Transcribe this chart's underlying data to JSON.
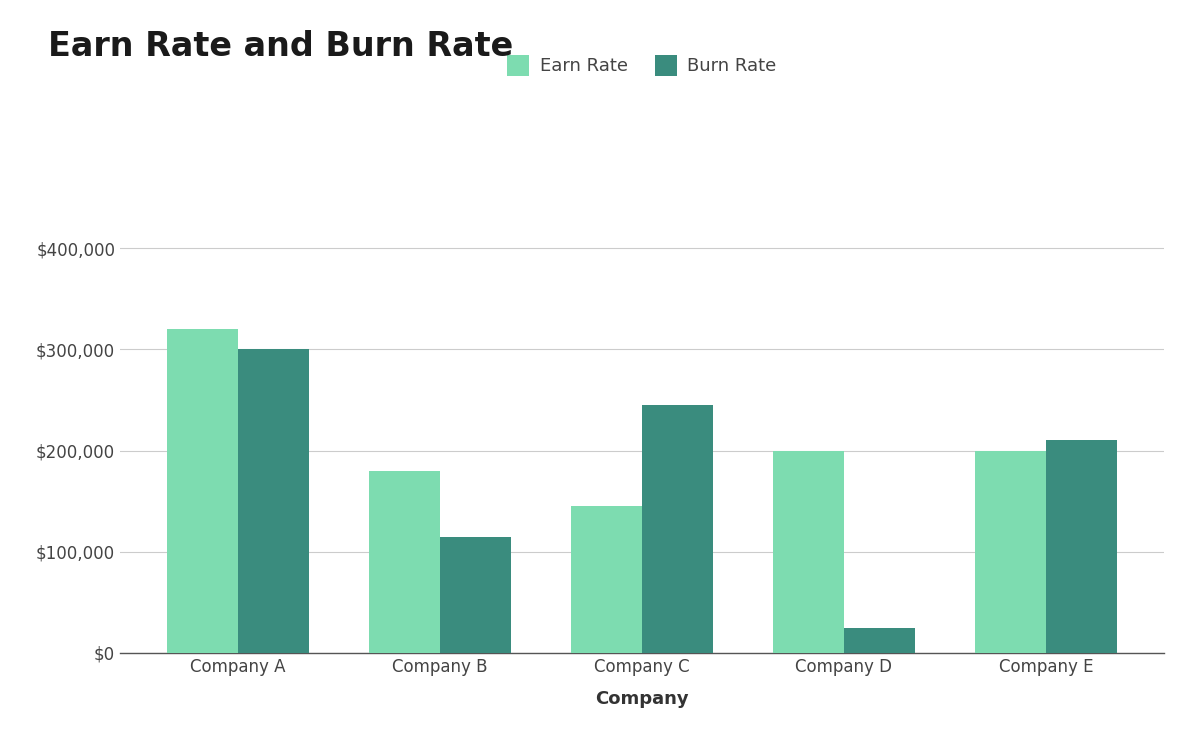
{
  "title": "Earn Rate and Burn Rate",
  "xlabel": "Company",
  "ylabel": "",
  "categories": [
    "Company A",
    "Company B",
    "Company C",
    "Company D",
    "Company E"
  ],
  "earn_rate": [
    320000,
    180000,
    145000,
    200000,
    200000
  ],
  "burn_rate": [
    300000,
    115000,
    245000,
    25000,
    210000
  ],
  "earn_color": "#7DDCB0",
  "burn_color": "#3A8C7E",
  "ylim": [
    0,
    440000
  ],
  "yticks": [
    0,
    100000,
    200000,
    300000,
    400000
  ],
  "background_color": "#FFFFFF",
  "title_fontsize": 24,
  "axis_label_fontsize": 13,
  "tick_fontsize": 12,
  "legend_fontsize": 13,
  "bar_width": 0.35,
  "grid_color": "#CCCCCC"
}
